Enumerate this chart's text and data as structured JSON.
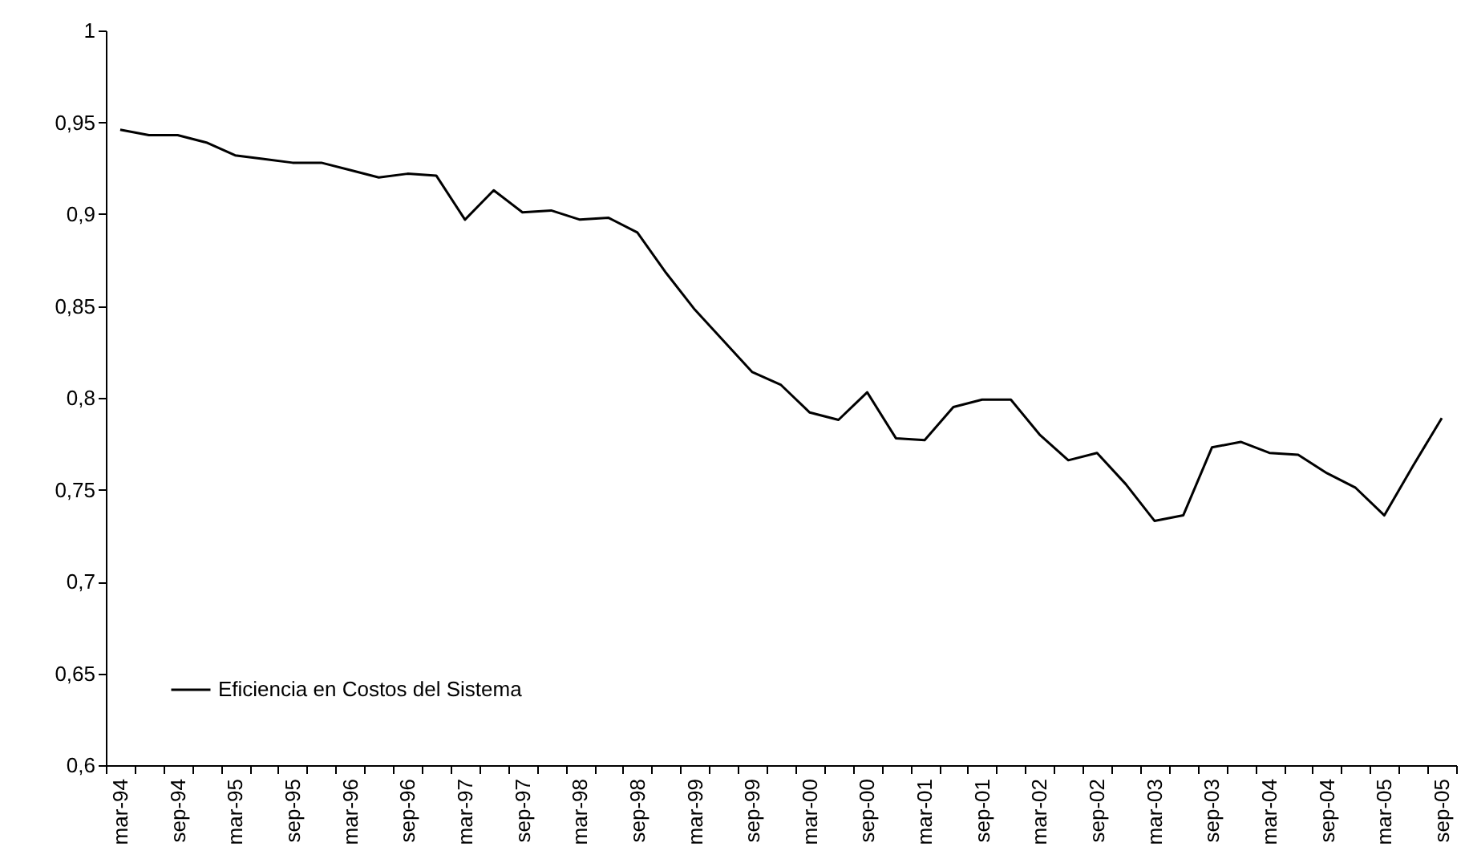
{
  "chart_data": {
    "type": "line",
    "categories": [
      "mar-94",
      null,
      "sep-94",
      null,
      "mar-95",
      null,
      "sep-95",
      null,
      "mar-96",
      null,
      "sep-96",
      null,
      "mar-97",
      null,
      "sep-97",
      null,
      "mar-98",
      null,
      "sep-98",
      null,
      "mar-99",
      null,
      "sep-99",
      null,
      "mar-00",
      null,
      "sep-00",
      null,
      "mar-01",
      null,
      "sep-01",
      null,
      "mar-02",
      null,
      "sep-02",
      null,
      "mar-03",
      null,
      "sep-03",
      null,
      "mar-04",
      null,
      "sep-04",
      null,
      "mar-05",
      null,
      "sep-05"
    ],
    "series": [
      {
        "name": "Eficiencia en Costos del Sistema",
        "color": "#000000",
        "values": [
          0.946,
          0.943,
          0.943,
          0.939,
          0.932,
          0.93,
          0.928,
          0.928,
          0.924,
          0.92,
          0.922,
          0.921,
          0.897,
          0.913,
          0.901,
          0.902,
          0.897,
          0.898,
          0.89,
          0.868,
          0.848,
          0.831,
          0.814,
          0.807,
          0.792,
          0.788,
          0.803,
          0.778,
          0.777,
          0.795,
          0.799,
          0.799,
          0.78,
          0.766,
          0.77,
          0.753,
          0.733,
          0.736,
          0.773,
          0.776,
          0.77,
          0.769,
          0.759,
          0.751,
          0.736,
          0.763,
          0.789
        ]
      }
    ],
    "ylim": [
      0.6,
      1
    ],
    "yticks": [
      {
        "value": 0.6,
        "label": "0,6"
      },
      {
        "value": 0.65,
        "label": "0,65"
      },
      {
        "value": 0.7,
        "label": "0,7"
      },
      {
        "value": 0.75,
        "label": "0,75"
      },
      {
        "value": 0.8,
        "label": "0,8"
      },
      {
        "value": 0.85,
        "label": "0,85"
      },
      {
        "value": 0.9,
        "label": "0,9"
      },
      {
        "value": 0.95,
        "label": "0,95"
      },
      {
        "value": 1,
        "label": "1"
      }
    ],
    "legend": "bottom left",
    "grid": false,
    "marker": "none",
    "line_style": "solid"
  }
}
